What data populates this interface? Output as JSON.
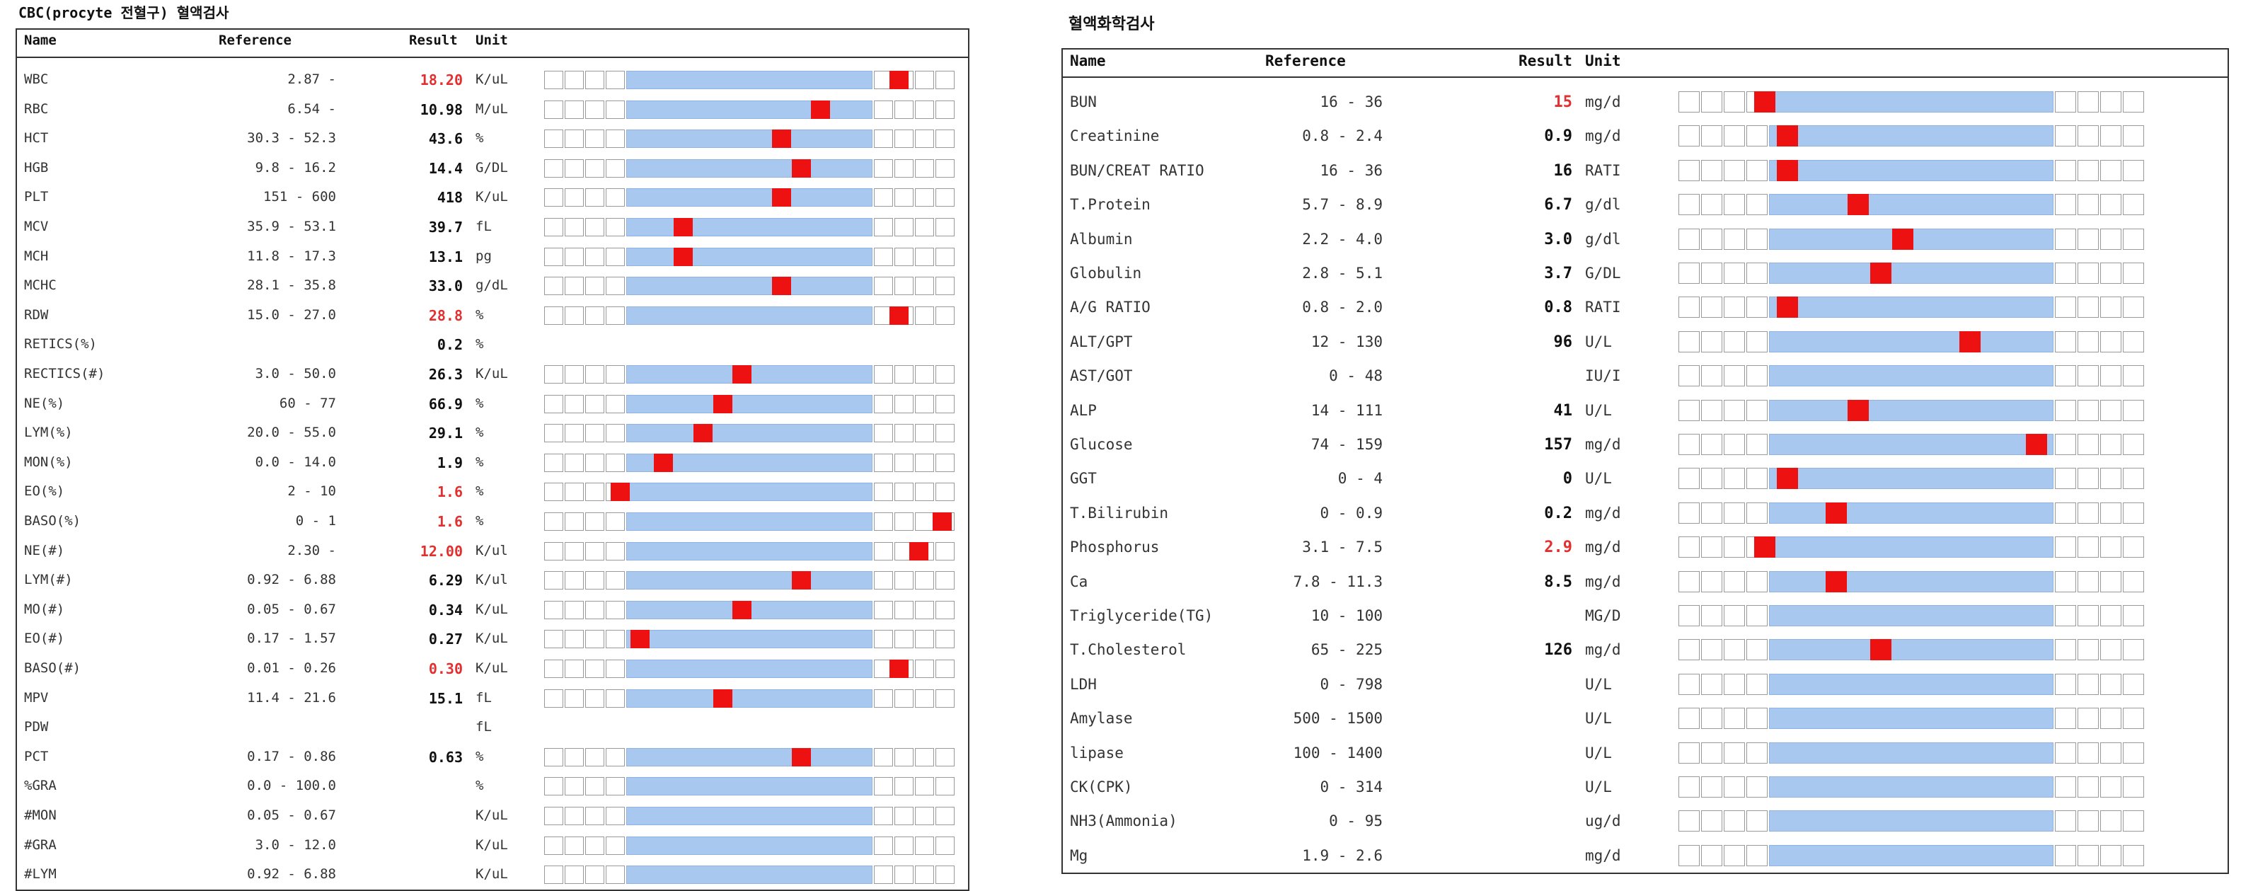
{
  "colors": {
    "normal_band": "#a8c8ef",
    "marker": "#ee1111",
    "abnormal_text": "#e23030"
  },
  "panels": [
    {
      "title": "CBC(procyte 전혈구) 혈액검사",
      "headers": {
        "name": "Name",
        "reference": "Reference",
        "result": "Result",
        "unit": "Unit"
      },
      "rows": [
        {
          "name": "WBC",
          "ref": "2.87 -",
          "result": "18.20",
          "unit": "K/uL",
          "abnormal": true,
          "grid": true,
          "pos": 0.88
        },
        {
          "name": "RBC",
          "ref": "6.54 -",
          "result": "10.98",
          "unit": "M/uL",
          "abnormal": false,
          "grid": true,
          "pos": 0.68
        },
        {
          "name": "HCT",
          "ref": "30.3 - 52.3",
          "result": "43.6",
          "unit": "%",
          "abnormal": false,
          "grid": true,
          "pos": 0.58
        },
        {
          "name": "HGB",
          "ref": "9.8 - 16.2",
          "result": "14.4",
          "unit": "G/DL",
          "abnormal": false,
          "grid": true,
          "pos": 0.63
        },
        {
          "name": "PLT",
          "ref": "151 - 600",
          "result": "418",
          "unit": "K/uL",
          "abnormal": false,
          "grid": true,
          "pos": 0.58
        },
        {
          "name": "MCV",
          "ref": "35.9 - 53.1",
          "result": "39.7",
          "unit": "fL",
          "abnormal": false,
          "grid": true,
          "pos": 0.33
        },
        {
          "name": "MCH",
          "ref": "11.8 - 17.3",
          "result": "13.1",
          "unit": "pg",
          "abnormal": false,
          "grid": true,
          "pos": 0.33
        },
        {
          "name": "MCHC",
          "ref": "28.1 - 35.8",
          "result": "33.0",
          "unit": "g/dL",
          "abnormal": false,
          "grid": true,
          "pos": 0.58
        },
        {
          "name": "RDW",
          "ref": "15.0 - 27.0",
          "result": "28.8",
          "unit": "%",
          "abnormal": true,
          "grid": true,
          "pos": 0.88
        },
        {
          "name": "RETICS(%)",
          "ref": "",
          "result": "0.2",
          "unit": "%",
          "abnormal": false,
          "grid": false,
          "pos": null
        },
        {
          "name": "RECTICS(#)",
          "ref": "3.0 - 50.0",
          "result": "26.3",
          "unit": "K/uL",
          "abnormal": false,
          "grid": true,
          "pos": 0.48
        },
        {
          "name": "NE(%)",
          "ref": "60 - 77",
          "result": "66.9",
          "unit": "%",
          "abnormal": false,
          "grid": true,
          "pos": 0.43
        },
        {
          "name": "LYM(%)",
          "ref": "20.0 - 55.0",
          "result": "29.1",
          "unit": "%",
          "abnormal": false,
          "grid": true,
          "pos": 0.38
        },
        {
          "name": "MON(%)",
          "ref": "0.0 - 14.0",
          "result": "1.9",
          "unit": "%",
          "abnormal": false,
          "grid": true,
          "pos": 0.28
        },
        {
          "name": "EO(%)",
          "ref": "2 - 10",
          "result": "1.6",
          "unit": "%",
          "abnormal": true,
          "grid": true,
          "pos": 0.17
        },
        {
          "name": "BASO(%)",
          "ref": "0 - 1",
          "result": "1.6",
          "unit": "%",
          "abnormal": true,
          "grid": true,
          "pos": 0.99
        },
        {
          "name": "NE(#)",
          "ref": "2.30 -",
          "result": "12.00",
          "unit": "K/ul",
          "abnormal": true,
          "grid": true,
          "pos": 0.93
        },
        {
          "name": "LYM(#)",
          "ref": "0.92 - 6.88",
          "result": "6.29",
          "unit": "K/ul",
          "abnormal": false,
          "grid": true,
          "pos": 0.63
        },
        {
          "name": "MO(#)",
          "ref": "0.05 - 0.67",
          "result": "0.34",
          "unit": "K/uL",
          "abnormal": false,
          "grid": true,
          "pos": 0.48
        },
        {
          "name": "EO(#)",
          "ref": "0.17 - 1.57",
          "result": "0.27",
          "unit": "K/uL",
          "abnormal": false,
          "grid": true,
          "pos": 0.22
        },
        {
          "name": "BASO(#)",
          "ref": "0.01 - 0.26",
          "result": "0.30",
          "unit": "K/uL",
          "abnormal": true,
          "grid": true,
          "pos": 0.88
        },
        {
          "name": "MPV",
          "ref": "11.4 - 21.6",
          "result": "15.1",
          "unit": "fL",
          "abnormal": false,
          "grid": true,
          "pos": 0.43
        },
        {
          "name": "PDW",
          "ref": "",
          "result": "",
          "unit": "fL",
          "abnormal": false,
          "grid": false,
          "pos": null
        },
        {
          "name": "PCT",
          "ref": "0.17 - 0.86",
          "result": "0.63",
          "unit": "%",
          "abnormal": false,
          "grid": true,
          "pos": 0.63
        },
        {
          "name": "%GRA",
          "ref": "0.0 - 100.0",
          "result": "",
          "unit": "%",
          "abnormal": false,
          "grid": true,
          "pos": null
        },
        {
          "name": "#MON",
          "ref": "0.05 - 0.67",
          "result": "",
          "unit": "K/uL",
          "abnormal": false,
          "grid": true,
          "pos": null
        },
        {
          "name": "#GRA",
          "ref": "3.0 - 12.0",
          "result": "",
          "unit": "K/uL",
          "abnormal": false,
          "grid": true,
          "pos": null
        },
        {
          "name": "#LYM",
          "ref": "0.92 - 6.88",
          "result": "",
          "unit": "K/uL",
          "abnormal": false,
          "grid": true,
          "pos": null
        }
      ]
    },
    {
      "title": "혈액화학검사",
      "headers": {
        "name": "Name",
        "reference": "Reference",
        "result": "Result",
        "unit": "Unit"
      },
      "rows": [
        {
          "name": "BUN",
          "ref": "16 - 36",
          "result": "15",
          "unit": "mg/d",
          "abnormal": true,
          "grid": true,
          "pos": 0.17
        },
        {
          "name": "Creatinine",
          "ref": "0.8 - 2.4",
          "result": "0.9",
          "unit": "mg/d",
          "abnormal": false,
          "grid": true,
          "pos": 0.22
        },
        {
          "name": "BUN/CREAT RATIO",
          "ref": "16 - 36",
          "result": "16",
          "unit": "RATI",
          "abnormal": false,
          "grid": true,
          "pos": 0.22
        },
        {
          "name": "T.Protein",
          "ref": "5.7 - 8.9",
          "result": "6.7",
          "unit": "g/dl",
          "abnormal": false,
          "grid": true,
          "pos": 0.38
        },
        {
          "name": "Albumin",
          "ref": "2.2 - 4.0",
          "result": "3.0",
          "unit": "g/dl",
          "abnormal": false,
          "grid": true,
          "pos": 0.48
        },
        {
          "name": "Globulin",
          "ref": "2.8 - 5.1",
          "result": "3.7",
          "unit": "G/DL",
          "abnormal": false,
          "grid": true,
          "pos": 0.43
        },
        {
          "name": "A/G RATIO",
          "ref": "0.8 - 2.0",
          "result": "0.8",
          "unit": "RATI",
          "abnormal": false,
          "grid": true,
          "pos": 0.22
        },
        {
          "name": "ALT/GPT",
          "ref": "12 - 130",
          "result": "96",
          "unit": "U/L",
          "abnormal": false,
          "grid": true,
          "pos": 0.63
        },
        {
          "name": "AST/GOT",
          "ref": "0 - 48",
          "result": "",
          "unit": "IU/I",
          "abnormal": false,
          "grid": true,
          "pos": null
        },
        {
          "name": "ALP",
          "ref": "14 - 111",
          "result": "41",
          "unit": "U/L",
          "abnormal": false,
          "grid": true,
          "pos": 0.38
        },
        {
          "name": "Glucose",
          "ref": "74 - 159",
          "result": "157",
          "unit": "mg/d",
          "abnormal": false,
          "grid": true,
          "pos": 0.78
        },
        {
          "name": "GGT",
          "ref": "0 - 4",
          "result": "0",
          "unit": "U/L",
          "abnormal": false,
          "grid": true,
          "pos": 0.22
        },
        {
          "name": "T.Bilirubin",
          "ref": "0 - 0.9",
          "result": "0.2",
          "unit": "mg/d",
          "abnormal": false,
          "grid": true,
          "pos": 0.33
        },
        {
          "name": "Phosphorus",
          "ref": "3.1 - 7.5",
          "result": "2.9",
          "unit": "mg/d",
          "abnormal": true,
          "grid": true,
          "pos": 0.17
        },
        {
          "name": "Ca",
          "ref": "7.8 - 11.3",
          "result": "8.5",
          "unit": "mg/d",
          "abnormal": false,
          "grid": true,
          "pos": 0.33
        },
        {
          "name": "Triglyceride(TG)",
          "ref": "10 - 100",
          "result": "",
          "unit": "MG/D",
          "abnormal": false,
          "grid": true,
          "pos": null
        },
        {
          "name": "T.Cholesterol",
          "ref": "65 - 225",
          "result": "126",
          "unit": "mg/d",
          "abnormal": false,
          "grid": true,
          "pos": 0.43
        },
        {
          "name": "LDH",
          "ref": "0 - 798",
          "result": "",
          "unit": "U/L",
          "abnormal": false,
          "grid": true,
          "pos": null
        },
        {
          "name": "Amylase",
          "ref": "500 - 1500",
          "result": "",
          "unit": "U/L",
          "abnormal": false,
          "grid": true,
          "pos": null
        },
        {
          "name": "lipase",
          "ref": "100 - 1400",
          "result": "",
          "unit": "U/L",
          "abnormal": false,
          "grid": true,
          "pos": null
        },
        {
          "name": "CK(CPK)",
          "ref": "0 - 314",
          "result": "",
          "unit": "U/L",
          "abnormal": false,
          "grid": true,
          "pos": null
        },
        {
          "name": "NH3(Ammonia)",
          "ref": "0 - 95",
          "result": "",
          "unit": "ug/d",
          "abnormal": false,
          "grid": true,
          "pos": null
        },
        {
          "name": "Mg",
          "ref": "1.9 - 2.6",
          "result": "",
          "unit": "mg/d",
          "abnormal": false,
          "grid": true,
          "pos": null
        }
      ]
    }
  ]
}
